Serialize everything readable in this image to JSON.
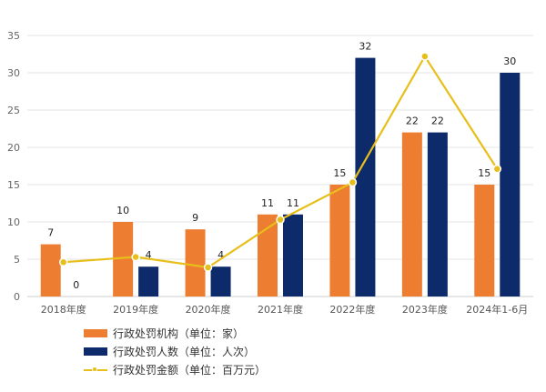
{
  "chart_data": {
    "type": "bar",
    "categories": [
      "2018年度",
      "2019年度",
      "2020年度",
      "2021年度",
      "2022年度",
      "2023年度",
      "2024年1-6月"
    ],
    "ylim": [
      0,
      35
    ],
    "yticks": [
      0,
      5,
      10,
      15,
      20,
      25,
      30,
      35
    ],
    "grid": true,
    "legend_position": "bottom-left",
    "series": [
      {
        "name": "行政处罚机构（单位：家）",
        "kind": "bar",
        "color": "#ed7d31",
        "values": [
          7,
          10,
          9,
          11,
          15,
          22,
          15
        ],
        "labels": [
          "7",
          "10",
          "9",
          "11",
          "15",
          "22",
          "15"
        ]
      },
      {
        "name": "行政处罚人数（单位：人次）",
        "kind": "bar",
        "color": "#0d2a6b",
        "values": [
          0,
          4,
          4,
          11,
          32,
          22,
          30
        ],
        "labels": [
          "0",
          "4",
          "4",
          "11",
          "32",
          "22",
          "30"
        ]
      },
      {
        "name": "行政处罚金额（单位：百万元）",
        "kind": "line",
        "color": "#e8bf1a",
        "values": [
          4.6,
          5.3,
          3.9,
          10.3,
          15.3,
          32.2,
          17.1
        ]
      }
    ]
  },
  "legend": {
    "items": [
      {
        "label": "行政处罚机构（单位：家）"
      },
      {
        "label": "行政处罚人数（单位：人次）"
      },
      {
        "label": "行政处罚金额（单位：百万元）"
      }
    ]
  }
}
